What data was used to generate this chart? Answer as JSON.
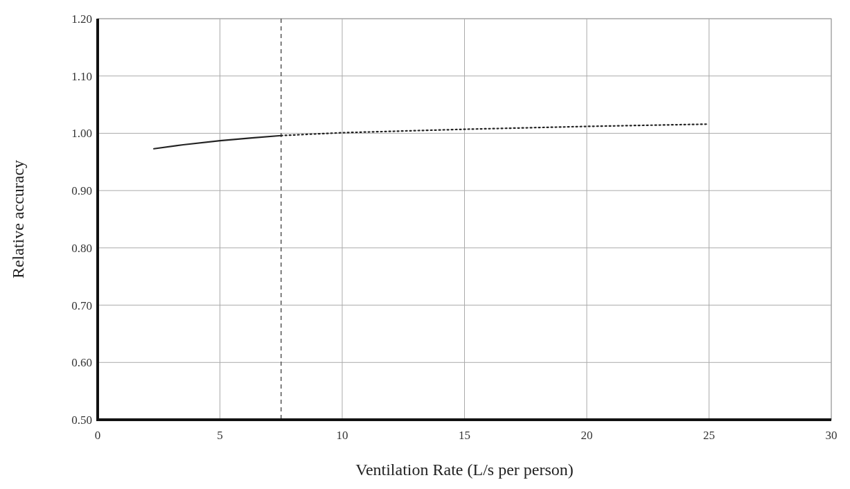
{
  "chart_data": {
    "type": "line",
    "xlabel": "Ventilation Rate (L/s per person)",
    "ylabel": "Relative accuracy",
    "xlim": [
      0,
      30
    ],
    "xticks": [
      0,
      5,
      10,
      15,
      20,
      25,
      30
    ],
    "ylim": [
      0.5,
      1.2
    ],
    "yticks": [
      {
        "value": 0.5,
        "label": "0.50"
      },
      {
        "value": 0.6,
        "label": "0.60"
      },
      {
        "value": 0.7,
        "label": "0.70"
      },
      {
        "value": 0.8,
        "label": "0.80"
      },
      {
        "value": 0.9,
        "label": "0.90"
      },
      {
        "value": 1.0,
        "label": "1.00"
      },
      {
        "value": 1.1,
        "label": "1.10"
      },
      {
        "value": 1.2,
        "label": "1.20"
      }
    ],
    "grid": true,
    "marker": "none",
    "series": [
      {
        "color": "#222222",
        "line_style": "solid",
        "x": [
          2.3,
          3.5,
          5,
          6.3,
          7.5
        ],
        "values": [
          0.973,
          0.98,
          0.987,
          0.992,
          0.996
        ]
      },
      {
        "color": "#222222",
        "line_style": "dotted",
        "x": [
          7.5,
          10,
          15,
          20,
          25
        ],
        "values": [
          0.996,
          1.001,
          1.007,
          1.012,
          1.016
        ]
      }
    ],
    "ref_lines": [
      {
        "axis": "x",
        "value": 7.5,
        "color": "#555555",
        "line_style": "dashed"
      }
    ]
  }
}
